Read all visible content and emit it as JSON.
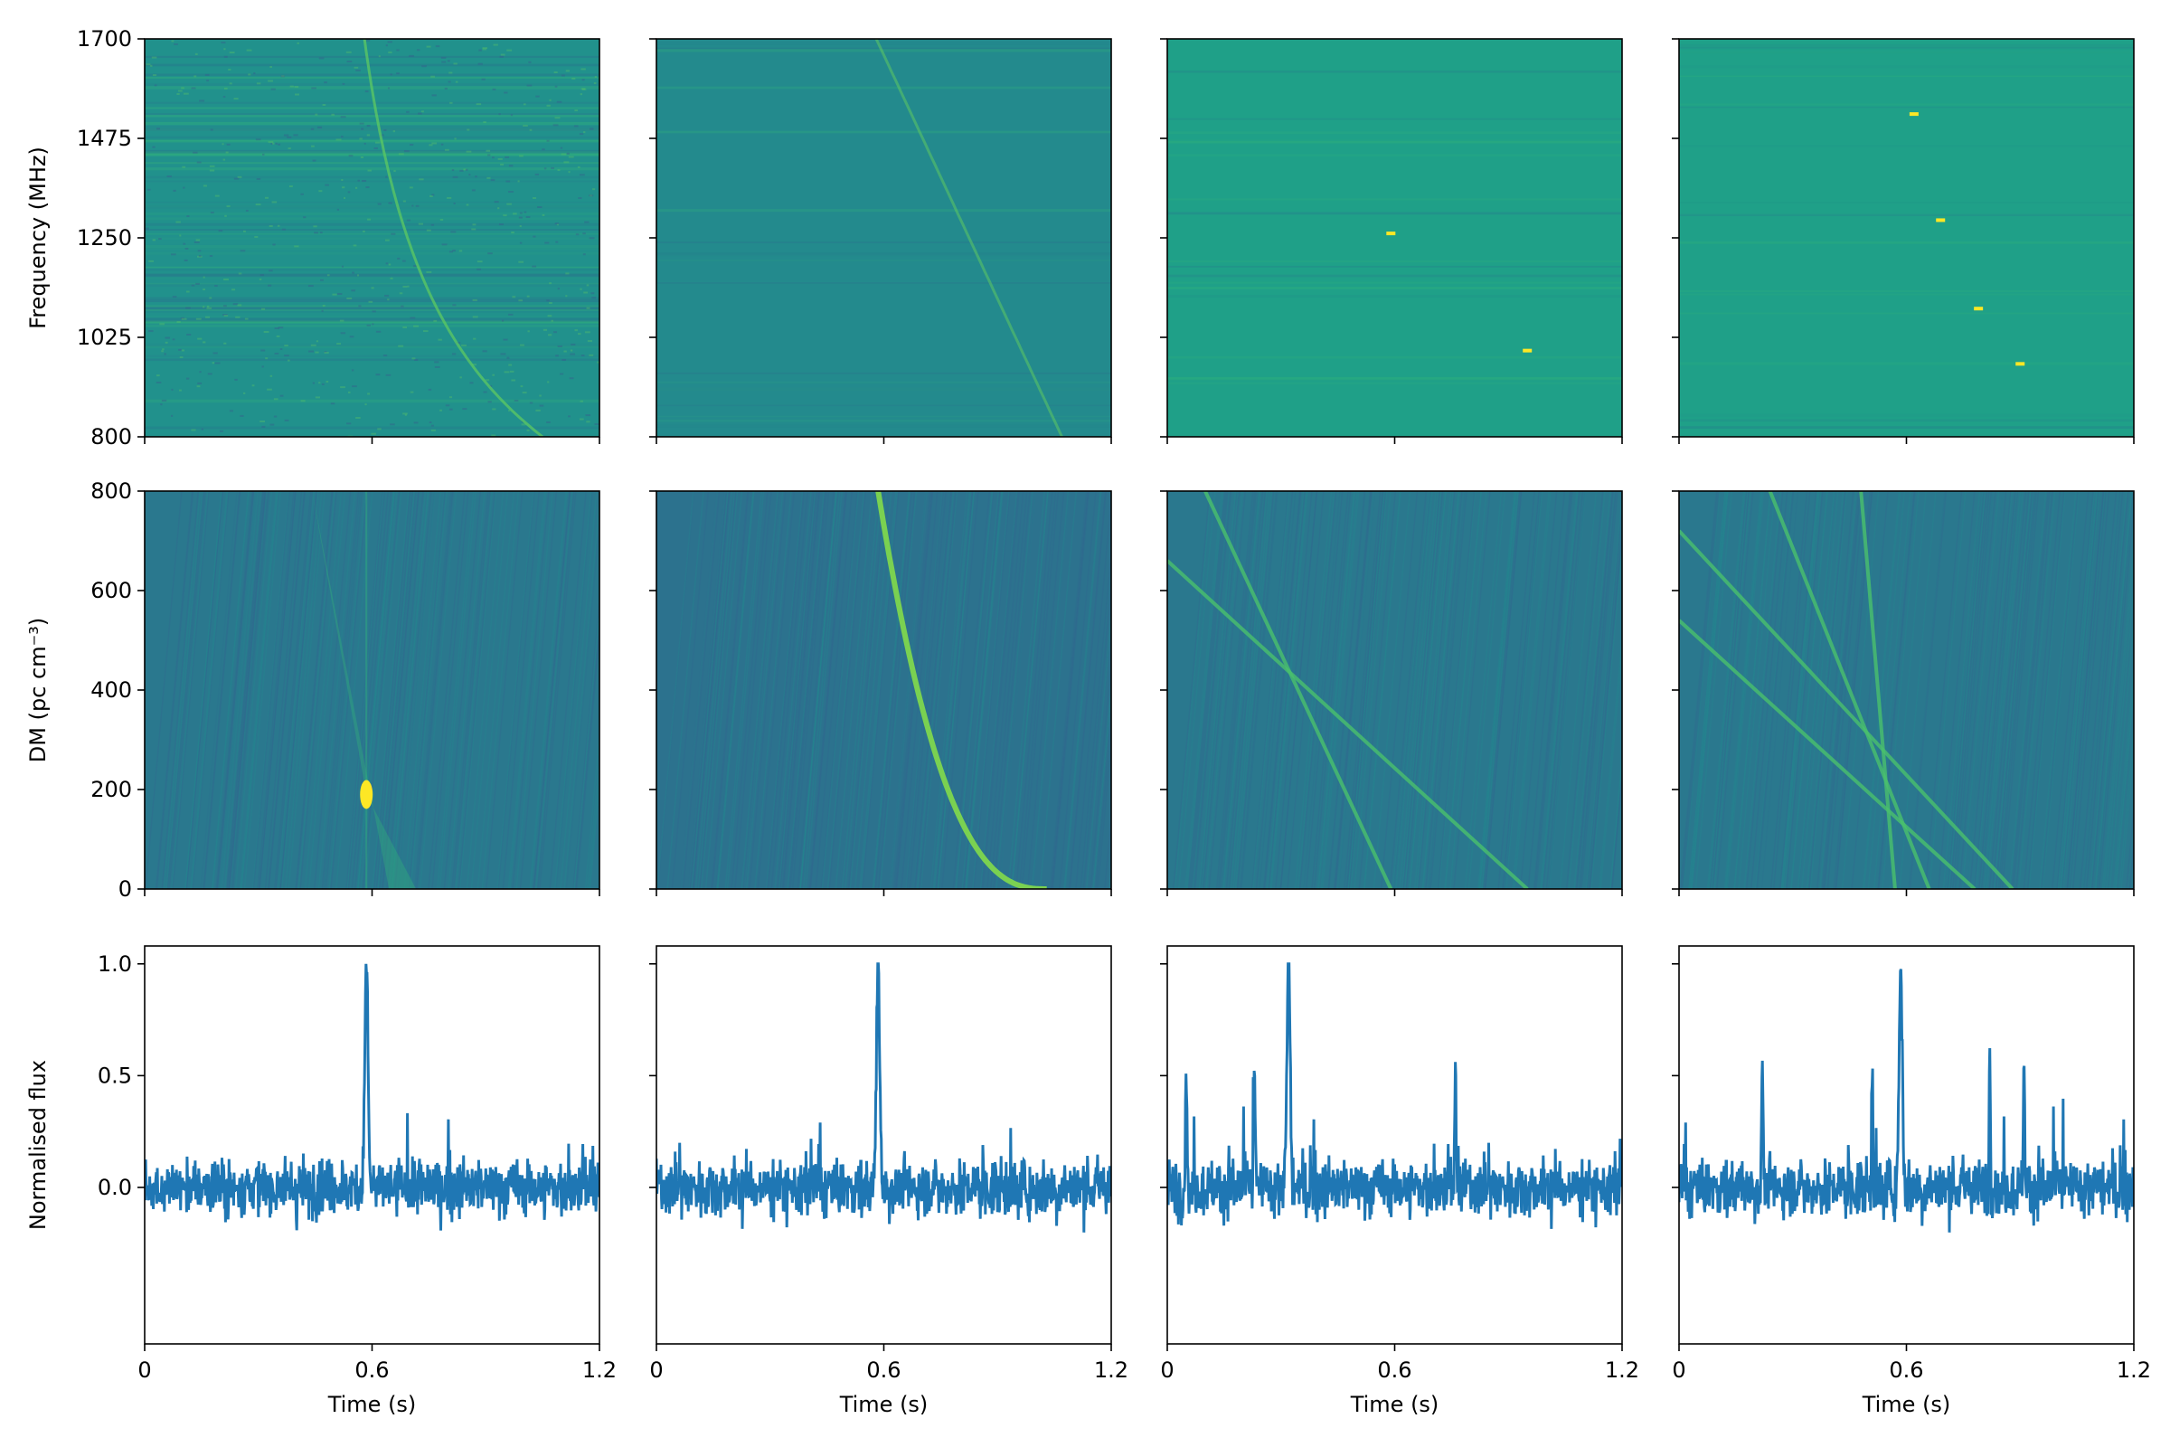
{
  "chart_data": {
    "type": "heatmap",
    "layout": {
      "rows": 3,
      "cols": 4
    },
    "colors": {
      "line": "#1f77b4",
      "viridis_low": "#440154",
      "viridis_mid": "#21918c",
      "viridis_high": "#fde725"
    },
    "x_axis": {
      "label": "Time (s)",
      "range": [
        0,
        1.2
      ],
      "ticks": [
        0,
        0.6,
        1.2
      ],
      "tick_labels": [
        "0",
        "0.6",
        "1.2"
      ]
    },
    "rows": [
      {
        "kind": "dynamic-spectrum",
        "ylabel": "Frequency (MHz)",
        "ylim": [
          800,
          1700
        ],
        "yticks": [
          800,
          1025,
          1250,
          1475,
          1700
        ],
        "ytick_labels": [
          "800",
          "1025",
          "1250",
          "1475",
          "1700"
        ],
        "colormap": "viridis"
      },
      {
        "kind": "dm-time",
        "ylabel": "DM (pc cm⁻³)",
        "ylim": [
          0,
          800
        ],
        "yticks": [
          0,
          200,
          400,
          600,
          800
        ],
        "ytick_labels": [
          "0",
          "200",
          "400",
          "600",
          "800"
        ],
        "colormap": "viridis"
      },
      {
        "kind": "profile",
        "ylabel": "Normalised flux",
        "ylim": [
          -0.7,
          1.08
        ],
        "yticks": [
          0.0,
          0.5,
          1.0
        ],
        "ytick_labels": [
          "0.0",
          "0.5",
          "1.0"
        ]
      }
    ],
    "columns": [
      {
        "spectrum_tracks": [
          {
            "t_top": 0.58,
            "t_bottom": 1.05,
            "curvature": "dispersed",
            "intensity": 0.75
          }
        ],
        "spectrum_dots": [],
        "dm_tracks": [
          {
            "type": "bowtie",
            "t": 0.585,
            "dm": 190
          }
        ],
        "profile_peaks": [
          {
            "t": 0.585,
            "amp": 1.0
          }
        ],
        "base_color": "#21918c",
        "background": "noisy"
      },
      {
        "spectrum_tracks": [
          {
            "t_top": 0.58,
            "t_bottom": 1.07,
            "curvature": "straight",
            "intensity": 0.55
          }
        ],
        "spectrum_dots": [],
        "dm_tracks": [
          {
            "type": "curve",
            "t_start": 0.585,
            "dm_top": 800,
            "t_end": 1.03,
            "dm_end": 0
          }
        ],
        "profile_peaks": [
          {
            "t": 0.585,
            "amp": 1.0
          }
        ],
        "base_color": "#238a8d",
        "background": "smooth"
      },
      {
        "spectrum_tracks": [],
        "spectrum_dots": [
          {
            "t": 0.59,
            "f": 1260
          },
          {
            "t": 0.95,
            "f": 995
          }
        ],
        "dm_tracks": [
          {
            "type": "line",
            "t0": 0.1,
            "dm0": 800,
            "t1": 0.59,
            "dm1": 0
          },
          {
            "type": "line",
            "t0": 0.0,
            "dm0": 660,
            "t1": 0.95,
            "dm1": 0
          }
        ],
        "profile_peaks": [
          {
            "t": 0.32,
            "amp": 1.0
          },
          {
            "t": 0.05,
            "amp": 0.58
          },
          {
            "t": 0.23,
            "amp": 0.57
          },
          {
            "t": 0.76,
            "amp": 0.5
          }
        ],
        "base_color": "#1fa088",
        "background": "smooth"
      },
      {
        "spectrum_tracks": [],
        "spectrum_dots": [
          {
            "t": 0.62,
            "f": 1530
          },
          {
            "t": 0.69,
            "f": 1290
          },
          {
            "t": 0.79,
            "f": 1090
          },
          {
            "t": 0.9,
            "f": 965
          }
        ],
        "dm_tracks": [
          {
            "type": "line",
            "t0": 0.24,
            "dm0": 800,
            "t1": 0.66,
            "dm1": 0
          },
          {
            "type": "line",
            "t0": 0.48,
            "dm0": 800,
            "t1": 0.57,
            "dm1": 0
          },
          {
            "type": "line",
            "t0": 0.0,
            "dm0": 720,
            "t1": 0.88,
            "dm1": 0
          },
          {
            "type": "line",
            "t0": 0.0,
            "dm0": 540,
            "t1": 0.78,
            "dm1": 0
          }
        ],
        "profile_peaks": [
          {
            "t": 0.585,
            "amp": 1.0
          },
          {
            "t": 0.22,
            "amp": 0.61
          },
          {
            "t": 0.51,
            "amp": 0.58
          },
          {
            "t": 0.82,
            "amp": 0.6
          },
          {
            "t": 0.91,
            "amp": 0.63
          }
        ],
        "base_color": "#1fa088",
        "background": "smooth"
      }
    ]
  }
}
